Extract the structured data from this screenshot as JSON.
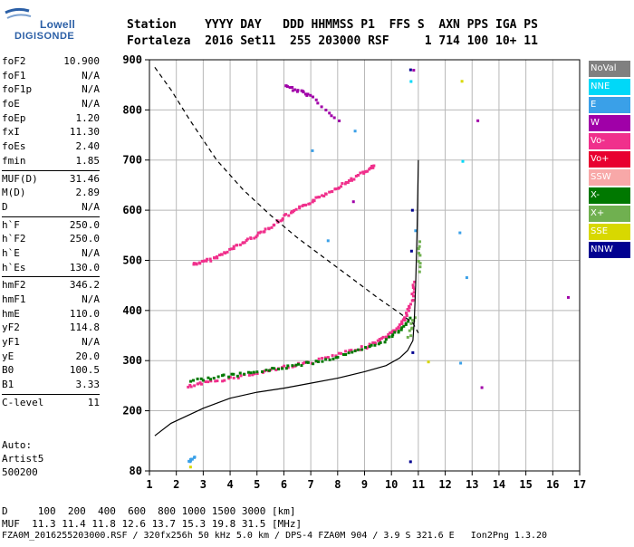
{
  "logo": {
    "line1": "Lowell",
    "line2": "DIGISONDE"
  },
  "header": {
    "row1": "Station    YYYY DAY   DDD HHMMSS P1  FFS S  AXN PPS IGA PS",
    "row2": "Fortaleza  2016 Set11  255 203000 RSF     1 714 100 10+ 11"
  },
  "params": {
    "group1": [
      {
        "name": "foF2",
        "value": "10.900"
      },
      {
        "name": "foF1",
        "value": "N/A"
      },
      {
        "name": "foF1p",
        "value": "N/A"
      },
      {
        "name": "foE",
        "value": "N/A"
      },
      {
        "name": "foEp",
        "value": "1.20"
      },
      {
        "name": "fxI",
        "value": "11.30"
      },
      {
        "name": "foEs",
        "value": "2.40"
      },
      {
        "name": "fmin",
        "value": "1.85"
      }
    ],
    "group2": [
      {
        "name": "MUF(D)",
        "value": "31.46"
      },
      {
        "name": "M(D)",
        "value": "2.89"
      },
      {
        "name": "D",
        "value": "N/A"
      }
    ],
    "group3": [
      {
        "name": "h`F",
        "value": "250.0"
      },
      {
        "name": "h`F2",
        "value": "250.0"
      },
      {
        "name": "h`E",
        "value": "N/A"
      },
      {
        "name": "h`Es",
        "value": "130.0"
      }
    ],
    "group4": [
      {
        "name": "hmF2",
        "value": "346.2"
      },
      {
        "name": "hmF1",
        "value": "N/A"
      },
      {
        "name": "hmE",
        "value": "110.0"
      },
      {
        "name": "yF2",
        "value": "114.8"
      },
      {
        "name": "yF1",
        "value": "N/A"
      },
      {
        "name": "yE",
        "value": "20.0"
      },
      {
        "name": "B0",
        "value": "100.5"
      },
      {
        "name": "B1",
        "value": "3.33"
      }
    ],
    "group5": [
      {
        "name": "C-level",
        "value": "11"
      }
    ]
  },
  "auto": {
    "line1": "Auto:",
    "line2": "Artist5",
    "line3": "500200"
  },
  "legend": [
    {
      "label": "NoVal",
      "color": "#808080"
    },
    {
      "label": "NNE",
      "color": "#00d8f8"
    },
    {
      "label": "E",
      "color": "#3aa0e8"
    },
    {
      "label": "W",
      "color": "#a000a8"
    },
    {
      "label": "Vo-",
      "color": "#f0308c"
    },
    {
      "label": "Vo+",
      "color": "#e80030"
    },
    {
      "label": "SSW",
      "color": "#f8a8a8"
    },
    {
      "label": "X-",
      "color": "#007800"
    },
    {
      "label": "X+",
      "color": "#70b050"
    },
    {
      "label": "SSE",
      "color": "#d8d800"
    },
    {
      "label": "NNW",
      "color": "#000090"
    }
  ],
  "chart_data": {
    "type": "scatter",
    "xlim": [
      1,
      17
    ],
    "ylim": [
      80,
      900
    ],
    "xticks": [
      "1",
      "2",
      "3",
      "4",
      "5",
      "6",
      "7",
      "8",
      "9",
      "10",
      "11",
      "12",
      "13",
      "14",
      "15",
      "16",
      "17"
    ],
    "yticks": [
      "80",
      "200",
      "300",
      "400",
      "500",
      "600",
      "700",
      "800",
      "900"
    ],
    "grid": true,
    "series": [
      {
        "name": "Vo-",
        "color": "#f0308c",
        "points": [
          [
            2.6,
            495
          ],
          [
            3.0,
            500
          ],
          [
            3.5,
            510
          ],
          [
            4.0,
            525
          ],
          [
            4.5,
            540
          ],
          [
            5.0,
            555
          ],
          [
            5.5,
            570
          ],
          [
            6.0,
            590
          ],
          [
            6.5,
            605
          ],
          [
            7.0,
            620
          ],
          [
            7.5,
            635
          ],
          [
            8.0,
            650
          ],
          [
            8.5,
            665
          ],
          [
            9.0,
            680
          ],
          [
            9.3,
            690
          ],
          [
            2.4,
            250
          ],
          [
            3.0,
            258
          ],
          [
            4.0,
            268
          ],
          [
            5.0,
            278
          ],
          [
            6.0,
            290
          ],
          [
            7.0,
            300
          ],
          [
            8.0,
            315
          ],
          [
            9.0,
            330
          ],
          [
            9.5,
            342
          ],
          [
            10.0,
            358
          ],
          [
            10.3,
            375
          ],
          [
            10.5,
            390
          ],
          [
            10.7,
            420
          ],
          [
            10.8,
            460
          ]
        ]
      },
      {
        "name": "X-",
        "color": "#007800",
        "points": [
          [
            2.5,
            262
          ],
          [
            3.5,
            270
          ],
          [
            4.5,
            276
          ],
          [
            5.5,
            285
          ],
          [
            6.5,
            294
          ],
          [
            7.5,
            304
          ],
          [
            8.5,
            318
          ],
          [
            9.5,
            336
          ],
          [
            10.2,
            360
          ],
          [
            10.6,
            385
          ]
        ]
      },
      {
        "name": "X+",
        "color": "#70b050",
        "points": [
          [
            10.6,
            350
          ],
          [
            10.8,
            390
          ],
          [
            11.0,
            480
          ],
          [
            11.0,
            540
          ]
        ]
      },
      {
        "name": "W",
        "color": "#a000a8",
        "points": [
          [
            6.0,
            850
          ],
          [
            6.5,
            840
          ],
          [
            7.0,
            830
          ],
          [
            8.0,
            780
          ],
          [
            8.5,
            620
          ],
          [
            10.8,
            880
          ],
          [
            13.2,
            780
          ],
          [
            13.3,
            250
          ],
          [
            16.5,
            430
          ]
        ]
      },
      {
        "name": "E",
        "color": "#3aa0e8",
        "points": [
          [
            2.4,
            100
          ],
          [
            2.6,
            110
          ],
          [
            7.0,
            720
          ],
          [
            7.6,
            540
          ],
          [
            8.6,
            760
          ],
          [
            12.5,
            560
          ],
          [
            12.5,
            300
          ],
          [
            12.8,
            470
          ],
          [
            10.8,
            560
          ]
        ]
      },
      {
        "name": "NNW",
        "color": "#000090",
        "points": [
          [
            10.7,
            880
          ],
          [
            10.7,
            600
          ],
          [
            10.7,
            520
          ],
          [
            10.7,
            320
          ],
          [
            10.7,
            100
          ]
        ]
      },
      {
        "name": "NNE",
        "color": "#00d8f8",
        "points": [
          [
            10.7,
            860
          ],
          [
            12.6,
            700
          ]
        ]
      },
      {
        "name": "SSE",
        "color": "#d8d800",
        "points": [
          [
            2.5,
            88
          ],
          [
            11.3,
            300
          ],
          [
            12.6,
            860
          ]
        ]
      }
    ],
    "lines": [
      {
        "name": "profile",
        "points": [
          [
            1.2,
            150
          ],
          [
            1.8,
            175
          ],
          [
            3.0,
            205
          ],
          [
            4.0,
            225
          ],
          [
            5.0,
            237
          ],
          [
            6.0,
            245
          ],
          [
            7.0,
            255
          ],
          [
            8.0,
            265
          ],
          [
            9.0,
            278
          ],
          [
            9.8,
            290
          ],
          [
            10.3,
            305
          ],
          [
            10.6,
            320
          ],
          [
            10.8,
            340
          ],
          [
            10.85,
            380
          ],
          [
            10.9,
            450
          ],
          [
            10.95,
            550
          ],
          [
            11.0,
            700
          ]
        ]
      },
      {
        "name": "virtual",
        "points": [
          [
            1.2,
            885
          ],
          [
            1.8,
            840
          ],
          [
            2.5,
            780
          ],
          [
            3.5,
            700
          ],
          [
            4.5,
            640
          ],
          [
            5.5,
            590
          ],
          [
            6.5,
            545
          ],
          [
            7.5,
            505
          ],
          [
            8.5,
            465
          ],
          [
            9.5,
            425
          ],
          [
            10.3,
            395
          ],
          [
            10.8,
            375
          ],
          [
            11.0,
            355
          ]
        ]
      }
    ]
  },
  "footer": {
    "line1": "D     100  200  400  600  800 1000 1500 3000 [km]",
    "line2": "MUF  11.3 11.4 11.8 12.6 13.7 15.3 19.8 31.5 [MHz]",
    "line3": "FZA0M_2016255203000.RSF / 320fx256h 50 kHz 5.0 km / DPS-4 FZA0M 904 / 3.9 S 321.6 E   Ion2Png 1.3.20"
  }
}
